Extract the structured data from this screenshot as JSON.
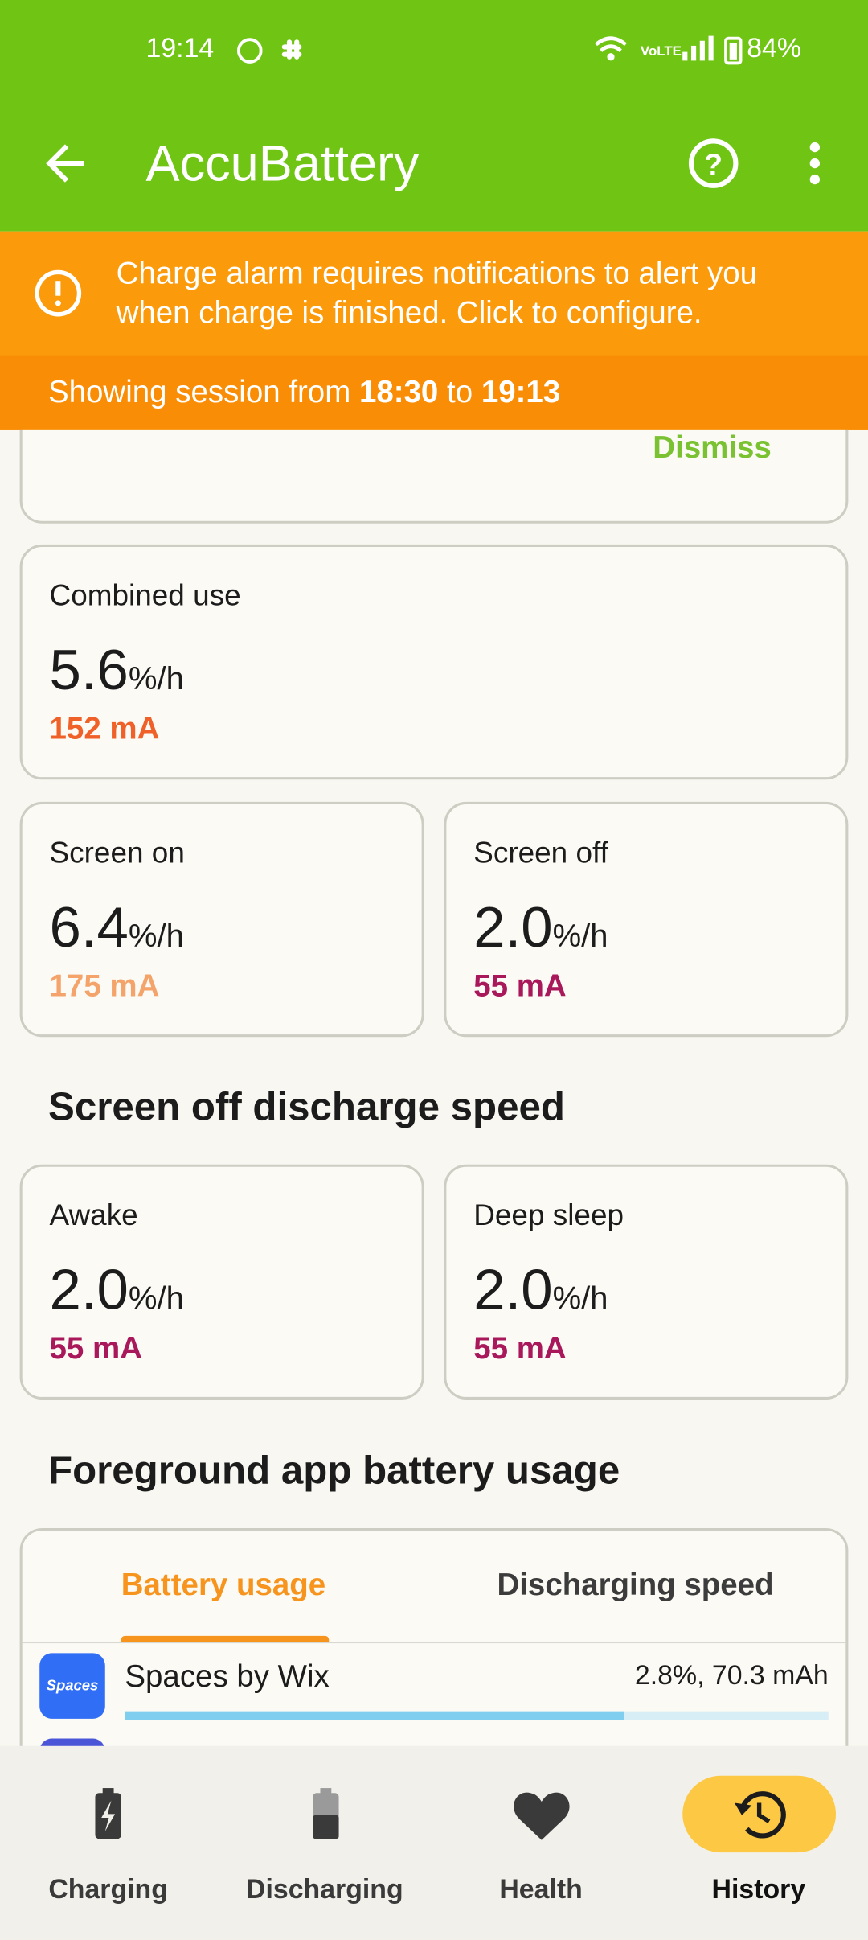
{
  "status_bar": {
    "time": "19:14",
    "battery": "84%"
  },
  "app_bar": {
    "title": "AccuBattery"
  },
  "alert": {
    "line1": "Charge alarm requires notifications to alert you",
    "line2": "when charge is finished. Click to configure."
  },
  "session": {
    "prefix": "Showing session from",
    "start": "18:30",
    "middle": "to",
    "end": "19:13"
  },
  "dismiss": "Dismiss",
  "cards": [
    {
      "label": "Combined use",
      "rate": "5.6",
      "unit": "%/h",
      "current": "152 mA"
    },
    {
      "label": "Screen on",
      "rate": "6.4",
      "unit": "%/h",
      "current": "175 mA"
    },
    {
      "label": "Screen off",
      "rate": "2.0",
      "unit": "%/h",
      "current": "55 mA"
    },
    {
      "label": "Awake",
      "rate": "2.0",
      "unit": "%/h",
      "current": "55 mA"
    },
    {
      "label": "Deep sleep",
      "rate": "2.0",
      "unit": "%/h",
      "current": "55 mA"
    }
  ],
  "sections": [
    "Screen off discharge speed",
    "Foreground app battery usage"
  ],
  "tabs": [
    "Battery usage",
    "Discharging speed"
  ],
  "apps": [
    {
      "icon_text": "Spaces",
      "name": "Spaces by Wix",
      "usage": "2.8%, 70.3 mAh",
      "bar_fraction": 0.71
    }
  ],
  "nav": [
    "Charging",
    "Discharging",
    "Health",
    "History"
  ]
}
